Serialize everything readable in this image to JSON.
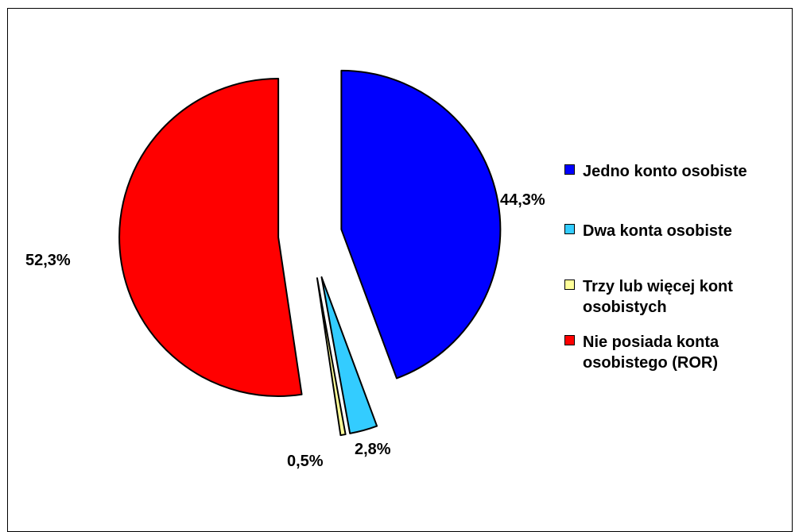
{
  "caption": "",
  "chart_data": {
    "type": "pie",
    "title": "",
    "legend_position": "right",
    "slices": [
      {
        "label": "Jedno konto osobiste",
        "value": 44.3,
        "value_label": "44,3%",
        "color": "#0000ff"
      },
      {
        "label": "Dwa konta osobiste",
        "value": 2.8,
        "value_label": "2,8%",
        "color": "#33ccff"
      },
      {
        "label": "Trzy lub więcej kont osobistych",
        "value": 0.5,
        "value_label": "0,5%",
        "color": "#ffff99"
      },
      {
        "label": "Nie posiada konta osobistego (ROR)",
        "value": 52.3,
        "value_label": "52,3%",
        "color": "#ff0000"
      }
    ]
  }
}
